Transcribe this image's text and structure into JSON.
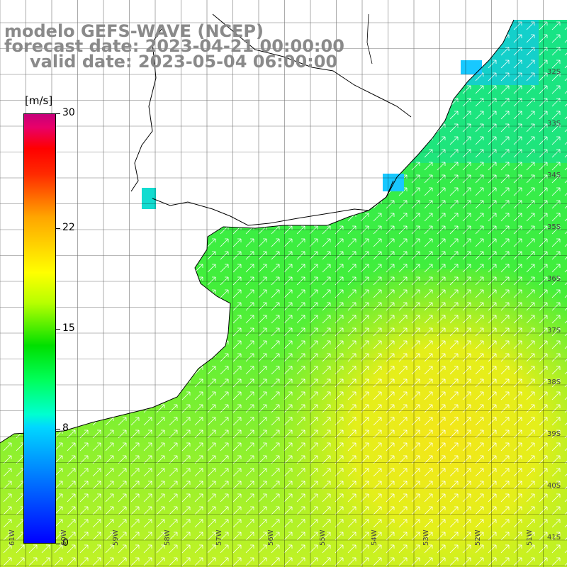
{
  "title": {
    "line1": "modelo GEFS-WAVE (NCEP)",
    "line2": "forecast date: 2023-04-21 00:00:00",
    "line3": "valid date: 2023-05-04 06:00:00"
  },
  "colorbar": {
    "unit": "[m/s]",
    "min": 0,
    "max": 30,
    "ticks": [
      "30",
      "22",
      "15",
      "8",
      "0"
    ],
    "tick_values": [
      30,
      22,
      15,
      8,
      0
    ]
  },
  "map": {
    "latitude_labels": [
      "32S",
      "33S",
      "34S",
      "35S",
      "36S",
      "37S",
      "38S",
      "39S",
      "40S",
      "41S"
    ],
    "longitude_labels": [
      "61W",
      "60W",
      "59W",
      "58W",
      "57W",
      "56W",
      "55W",
      "54W",
      "53W",
      "52W",
      "51W"
    ],
    "field": "wind speed with direction arrows",
    "colors": {
      "land": "#ffffff",
      "grid": "#000000",
      "coast": "#000000",
      "arrow": "#ffffff"
    }
  }
}
